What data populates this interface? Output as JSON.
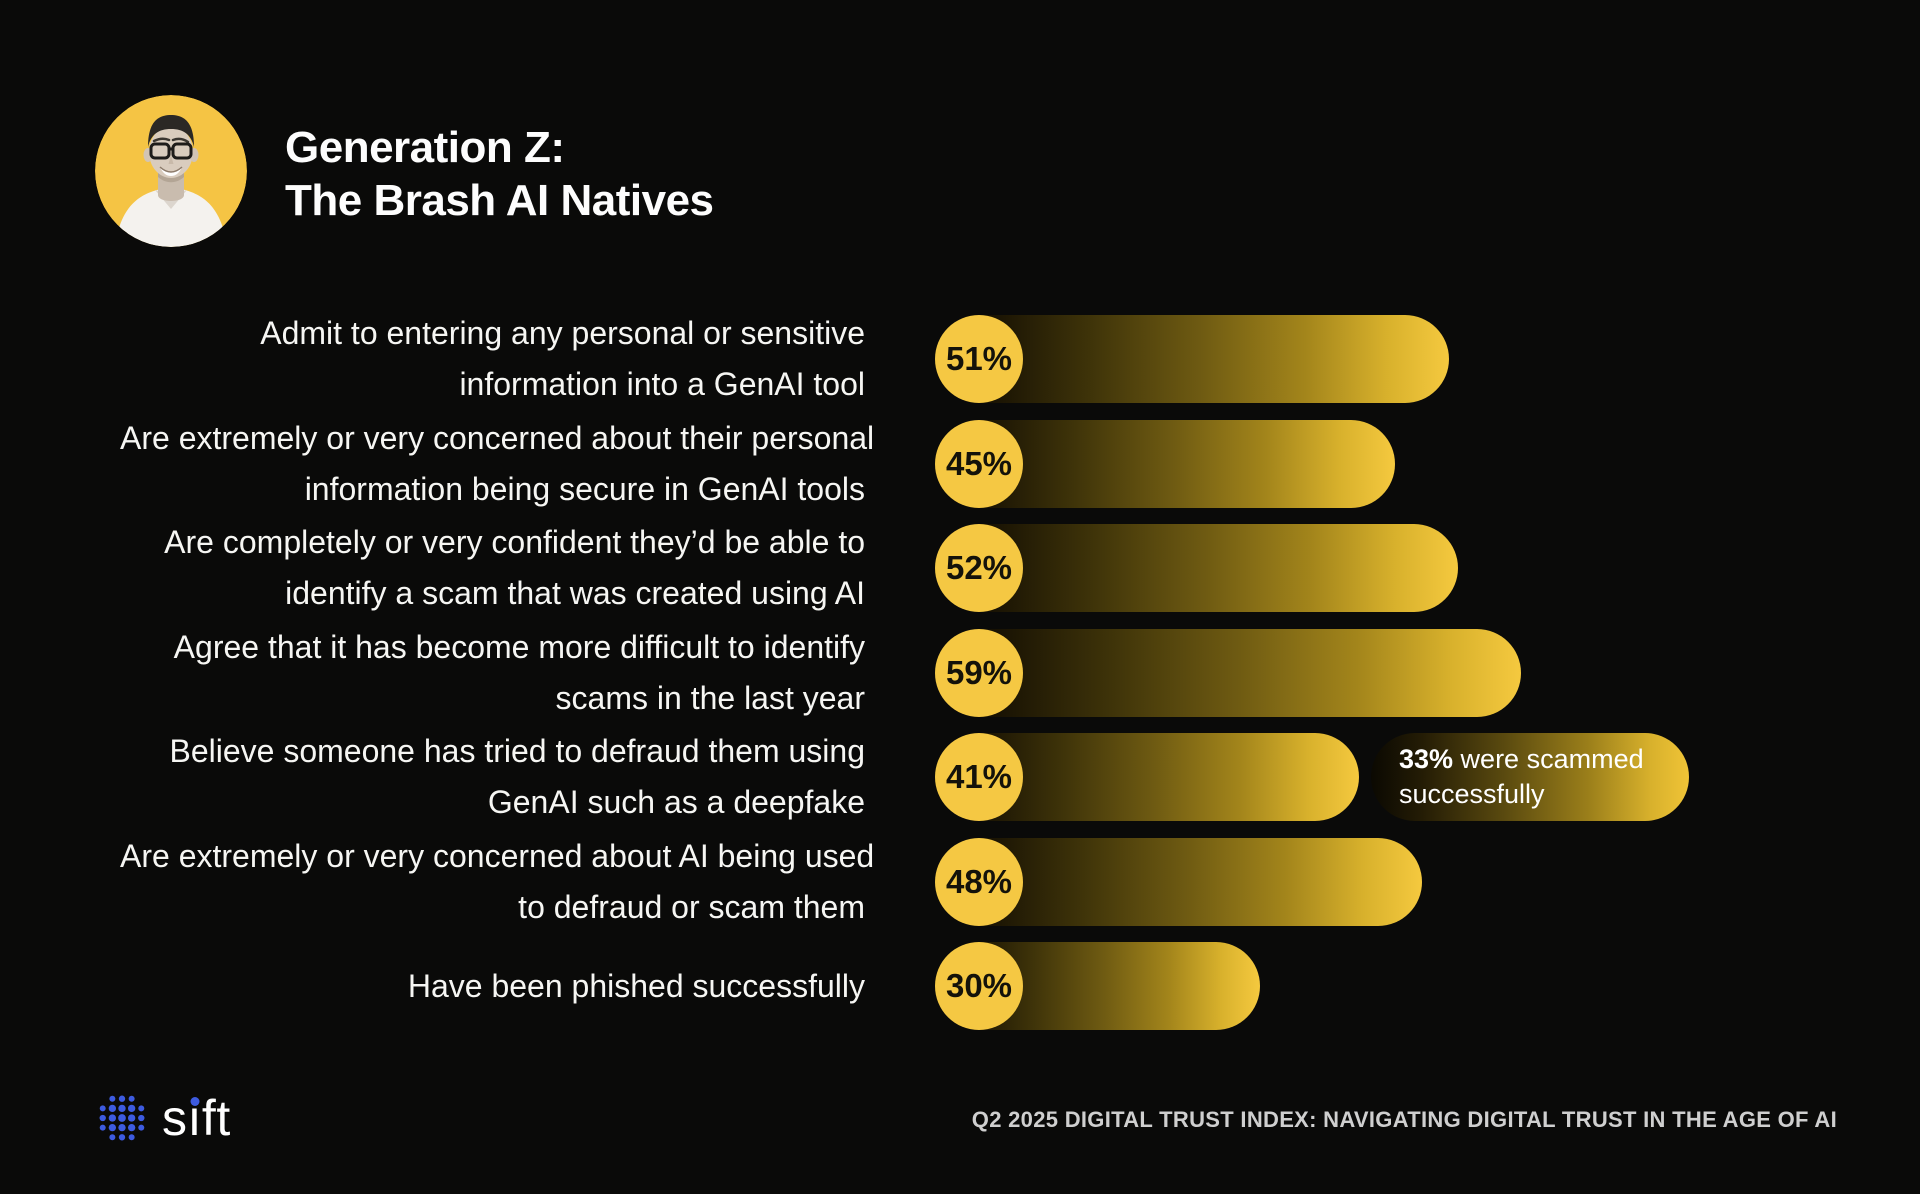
{
  "page": {
    "background": "#0A0A09"
  },
  "header": {
    "title_line1": "Generation Z:",
    "title_line2": "The Brash AI Natives",
    "avatar": "young-man-with-glasses-portrait-on-yellow-circle",
    "avatar_bg": "#F5C444"
  },
  "chart_data": {
    "type": "bar",
    "orientation": "horizontal",
    "unit_symbol": "%",
    "value_range": [
      0,
      100
    ],
    "grid": false,
    "legend": false,
    "bar_style": {
      "badge_color": "#F5C843",
      "badge_text_color": "#14120A",
      "gradient_start": "#0B0902",
      "gradient_end": "#F5C93F"
    },
    "rows": [
      {
        "label": "Admit to entering any personal or sensitive information into a GenAI tool",
        "label_lines": [
          "Admit to entering any personal or sensitive",
          "information into a GenAI tool"
        ],
        "value": 51
      },
      {
        "label": "Are extremely or very concerned about their personal information being secure in GenAI tools",
        "label_lines": [
          "Are extremely or very concerned about their personal",
          "information being secure in GenAI tools"
        ],
        "value": 45
      },
      {
        "label": "Are completely or very confident they’d be able to identify a scam that was created using AI",
        "label_lines": [
          "Are completely or very confident they’d be able to",
          "identify a scam that was created using AI"
        ],
        "value": 52
      },
      {
        "label": "Agree that it has become more difficult to identify scams in the last year",
        "label_lines": [
          "Agree that it has become more difficult to identify",
          "scams in the last year"
        ],
        "value": 59
      },
      {
        "label": "Believe someone has tried to defraud them using GenAI such as a deepfake",
        "label_lines": [
          "Believe someone has tried to defraud them using",
          "GenAI such as a deepfake"
        ],
        "value": 41,
        "annotation": {
          "bold": "33%",
          "line1_rest": " were scammed",
          "line2": "successfully",
          "full_text": "33% were scammed successfully"
        }
      },
      {
        "label": "Are extremely or very concerned about AI being used to defraud or scam them",
        "label_lines": [
          "Are extremely or very concerned about AI being used",
          "to defraud or scam them"
        ],
        "value": 48
      },
      {
        "label": "Have been phished successfully",
        "label_lines": [
          "Have been phished successfully"
        ],
        "value": 30
      }
    ]
  },
  "footer": {
    "brand": "sift",
    "brand_dot_color": "#3D5BE0",
    "report_title": "Q2 2025 DIGITAL TRUST INDEX: NAVIGATING DIGITAL TRUST IN THE AGE OF AI"
  }
}
